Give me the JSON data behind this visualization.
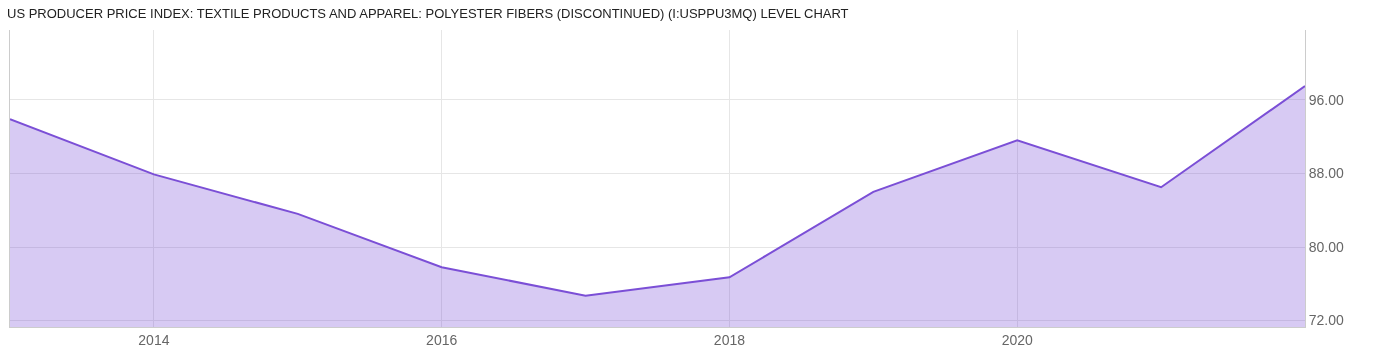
{
  "chart_data": {
    "type": "area",
    "title": "US PRODUCER PRICE INDEX: TEXTILE PRODUCTS AND APPAREL: POLYESTER FIBERS (DISCONTINUED) (I:USPPU3MQ) LEVEL CHART",
    "x": [
      2013,
      2014,
      2015,
      2016,
      2017,
      2018,
      2019,
      2020,
      2021,
      2022
    ],
    "series": [
      {
        "color": "#7b4fd6",
        "values": [
          93.9,
          87.9,
          83.6,
          77.8,
          74.7,
          76.7,
          86.0,
          91.6,
          86.5,
          97.5
        ]
      }
    ],
    "xlim": [
      2013,
      2022
    ],
    "xticks": [
      2014,
      2016,
      2018,
      2020
    ],
    "ylim": [
      71.3,
      103.6
    ],
    "yticks": [
      {
        "value": 72,
        "label": "72.00"
      },
      {
        "value": 80,
        "label": "80.00"
      },
      {
        "value": 88,
        "label": "88.00"
      },
      {
        "value": 96,
        "label": "96.00"
      }
    ],
    "grid": true,
    "marker": "none",
    "line_style": "solid"
  }
}
